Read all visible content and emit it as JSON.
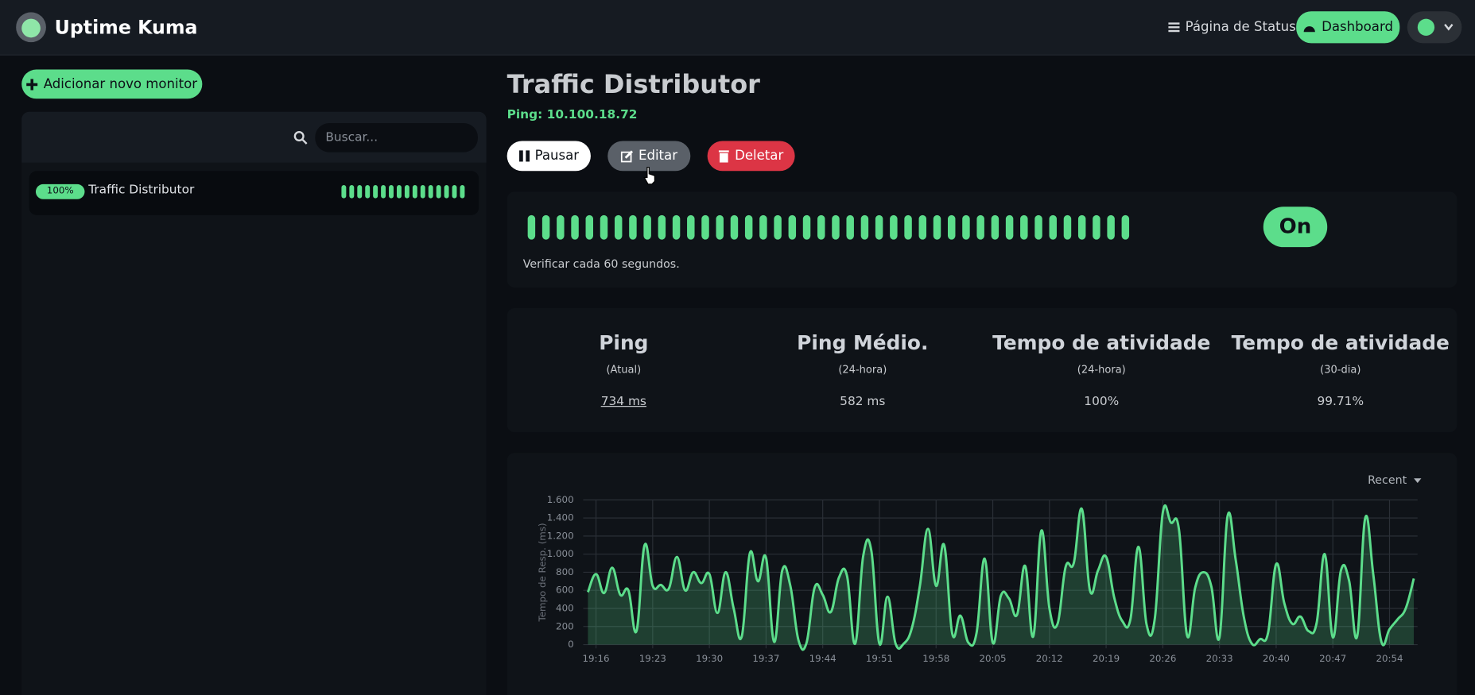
{
  "header": {
    "brand": "Uptime Kuma",
    "status_page": "Página de Status",
    "dashboard": "Dashboard"
  },
  "sidebar": {
    "add_button": "Adicionar novo monitor",
    "search_placeholder": "Buscar...",
    "monitors": [
      {
        "uptime": "100%",
        "name": "Traffic Distributor"
      }
    ]
  },
  "monitor": {
    "title": "Traffic Distributor",
    "subtitle": "Ping: 10.100.18.72",
    "buttons": [
      "Pausar",
      "Editar",
      "Deletar"
    ],
    "check_interval": "Verificar cada 60 segundos.",
    "status": "On"
  },
  "stats": [
    {
      "title": "Ping",
      "period": "(Atual)",
      "value": "734 ms"
    },
    {
      "title": "Ping Médio.",
      "period": "(24-hora)",
      "value": "582 ms"
    },
    {
      "title": "Tempo de atividade",
      "period": "(24-hora)",
      "value": "100%"
    },
    {
      "title": "Tempo de atividade",
      "period": "(30-dia)",
      "value": "99.71%"
    }
  ],
  "chart_data": {
    "type": "line",
    "period_select": "Recent",
    "y_label": "Tempo de Resp. (ms)",
    "color": "#5cdd8b",
    "grid": true,
    "ylim": [
      0,
      1600
    ],
    "yticks": [
      0,
      200,
      400,
      600,
      800,
      {
        "value": 1000,
        "label": "1.000"
      },
      {
        "value": 1200,
        "label": "1.200"
      },
      {
        "value": 1400,
        "label": "1.400"
      },
      {
        "value": 1600,
        "label": "1.600"
      }
    ],
    "categories": [
      null,
      "19:16",
      null,
      null,
      null,
      null,
      null,
      null,
      "19:23",
      null,
      null,
      null,
      null,
      null,
      null,
      "19:30",
      null,
      null,
      null,
      null,
      null,
      null,
      "19:37",
      null,
      null,
      null,
      null,
      null,
      null,
      "19:44",
      null,
      null,
      null,
      null,
      null,
      null,
      "19:51",
      null,
      null,
      null,
      null,
      null,
      null,
      "19:58",
      null,
      null,
      null,
      null,
      null,
      null,
      "20:05",
      null,
      null,
      null,
      null,
      null,
      null,
      "20:12",
      null,
      null,
      null,
      null,
      null,
      null,
      "20:19",
      null,
      null,
      null,
      null,
      null,
      null,
      "20:26",
      null,
      null,
      null,
      null,
      null,
      null,
      "20:33",
      null,
      null,
      null,
      null,
      null,
      null,
      "20:40",
      null,
      null,
      null,
      null,
      null,
      null,
      "20:47",
      null,
      null,
      null,
      null,
      null,
      null,
      "20:54",
      null,
      null,
      null
    ],
    "values": [
      580,
      780,
      570,
      850,
      550,
      600,
      150,
      1100,
      650,
      660,
      620,
      970,
      600,
      800,
      680,
      780,
      350,
      800,
      400,
      90,
      1010,
      700,
      960,
      30,
      820,
      650,
      50,
      20,
      630,
      550,
      360,
      740,
      760,
      10,
      980,
      1040,
      10,
      530,
      10,
      10,
      180,
      650,
      1280,
      650,
      1100,
      120,
      320,
      20,
      130,
      950,
      20,
      540,
      510,
      330,
      870,
      90,
      1260,
      400,
      230,
      860,
      900,
      1500,
      600,
      820,
      970,
      520,
      260,
      280,
      1080,
      220,
      280,
      1460,
      1350,
      1270,
      100,
      630,
      800,
      640,
      80,
      1420,
      940,
      310,
      10,
      60,
      130,
      890,
      460,
      230,
      310,
      150,
      240,
      1000,
      80,
      820,
      710,
      90,
      1400,
      770,
      30,
      170,
      280,
      400,
      730
    ]
  }
}
